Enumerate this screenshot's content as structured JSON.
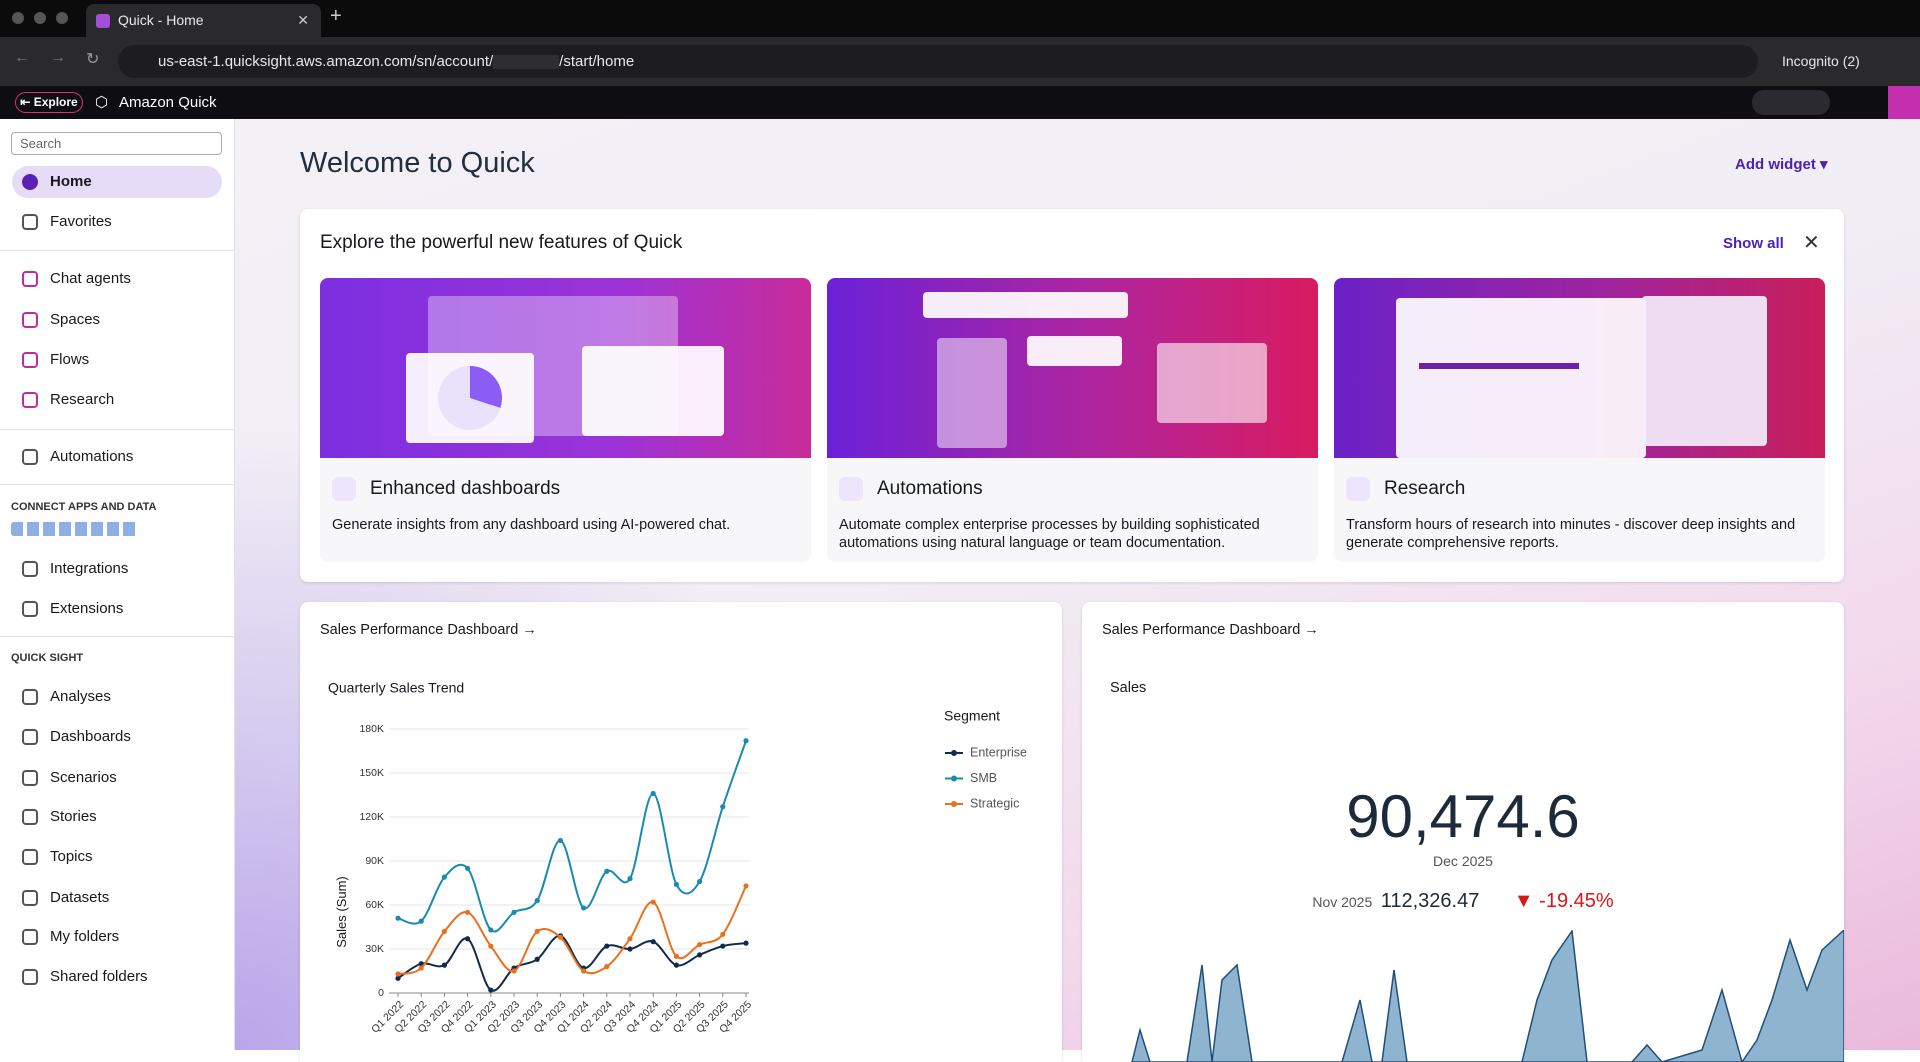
{
  "browser": {
    "tab_title": "Quick - Home",
    "url": "us-east-1.quicksight.aws.amazon.com/sn/account/",
    "url_suffix": "/start/home",
    "incognito": "Incognito (2)"
  },
  "app_bar": {
    "explore": "Explore",
    "product": "Amazon Quick"
  },
  "sidebar": {
    "search_placeholder": "Search",
    "primary": [
      "Home",
      "Favorites"
    ],
    "agents": [
      "Chat agents",
      "Spaces",
      "Flows",
      "Research"
    ],
    "automations": "Automations",
    "connect_heading": "CONNECT APPS AND DATA",
    "connect": [
      "Integrations",
      "Extensions"
    ],
    "quicksight_heading": "QUICK SIGHT",
    "quicksight": [
      "Analyses",
      "Dashboards",
      "Scenarios",
      "Stories",
      "Topics",
      "Datasets",
      "My folders",
      "Shared folders"
    ]
  },
  "main": {
    "title": "Welcome to Quick",
    "add_widget": "Add widget",
    "features": {
      "heading": "Explore the powerful new features of Quick",
      "show_all": "Show all",
      "cards": [
        {
          "title": "Enhanced dashboards",
          "description": "Generate insights from any dashboard using AI-powered chat."
        },
        {
          "title": "Automations",
          "description": "Automate complex enterprise processes by building sophisticated automations using natural language or team documentation."
        },
        {
          "title": "Research",
          "description": "Transform hours of research into minutes - discover deep insights and generate comprehensive reports."
        }
      ]
    }
  },
  "widgets": [
    {
      "link": "Sales Performance Dashboard →",
      "chart": {
        "type": "line",
        "title": "Quarterly Sales Trend",
        "y_label": "Sales (Sum)",
        "legend_title": "Segment",
        "categories": [
          "Q1 2022",
          "Q2 2022",
          "Q3 2022",
          "Q4 2022",
          "Q1 2023",
          "Q2 2023",
          "Q3 2023",
          "Q4 2023",
          "Q1 2024",
          "Q2 2024",
          "Q3 2024",
          "Q4 2024",
          "Q1 2025",
          "Q2 2025",
          "Q3 2025",
          "Q4 2025"
        ],
        "series": [
          {
            "name": "Enterprise",
            "color": "#0f2b4f",
            "values": [
              10000,
              20000,
              19000,
              37000,
              2000,
              17000,
              23000,
              39000,
              17000,
              32000,
              30000,
              35000,
              19000,
              26000,
              32000,
              34000
            ]
          },
          {
            "name": "SMB",
            "color": "#1b8ab0",
            "values": [
              51000,
              49000,
              79000,
              85000,
              43000,
              55000,
              63000,
              104000,
              58000,
              83000,
              78000,
              136000,
              74000,
              76000,
              127000,
              172000
            ]
          },
          {
            "name": "Strategic",
            "color": "#e8711f",
            "values": [
              13000,
              17000,
              42000,
              55000,
              32000,
              15000,
              42000,
              38000,
              15000,
              18000,
              37000,
              62000,
              25000,
              33000,
              40000,
              73000
            ]
          }
        ],
        "ylim": [
          0,
          180000
        ],
        "yticks": [
          0,
          {
            "value": 30000,
            "label": "30K"
          },
          {
            "value": 60000,
            "label": "60K"
          },
          {
            "value": 90000,
            "label": "90K"
          },
          {
            "value": 120000,
            "label": "120K"
          },
          {
            "value": 150000,
            "label": "150K"
          },
          {
            "value": 180000,
            "label": "180K"
          }
        ],
        "grid": true
      }
    },
    {
      "link": "Sales Performance Dashboard →",
      "kpi": {
        "title": "Sales",
        "value": "90,474.6",
        "period": "Dec 2025",
        "compare_period": "Nov 2025",
        "compare_value": "112,326.47",
        "change": "-19.45%"
      }
    }
  ]
}
